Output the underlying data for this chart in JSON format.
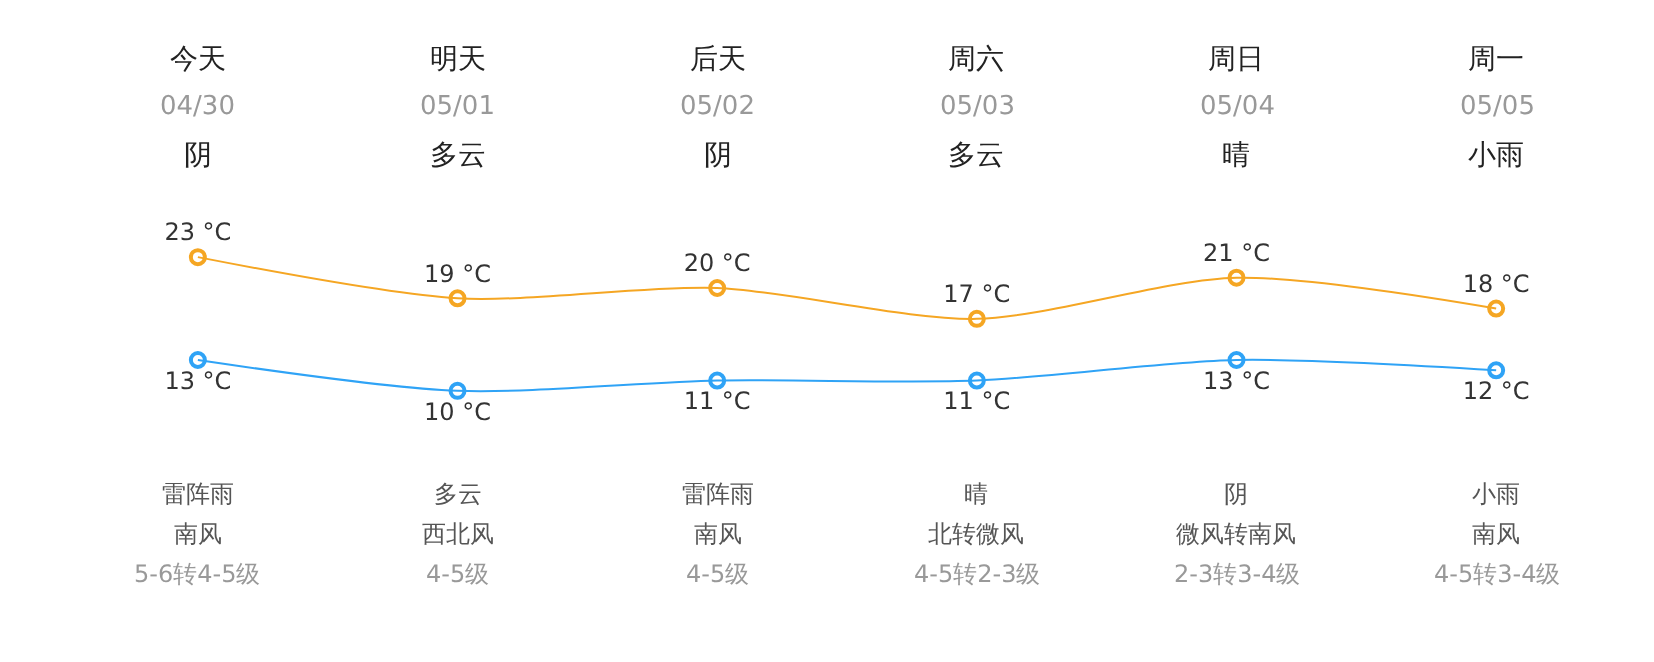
{
  "chart_data": {
    "type": "line",
    "categories": [
      "今天",
      "明天",
      "后天",
      "周六",
      "周日",
      "周一"
    ],
    "series": [
      {
        "color": "#f5a623",
        "values": [
          23,
          19,
          20,
          17,
          21,
          18
        ],
        "value_labels": [
          "23 °C",
          "19 °C",
          "20 °C",
          "17 °C",
          "21 °C",
          "18 °C"
        ]
      },
      {
        "color": "#2fa3f6",
        "values": [
          13,
          10,
          11,
          11,
          13,
          12
        ],
        "value_labels": [
          "13 °C",
          "10 °C",
          "11 °C",
          "11 °C",
          "13 °C",
          "12 °C"
        ]
      }
    ],
    "marker": "circle",
    "tick_labels": false,
    "legend": false,
    "annotations": [
      "04/30",
      "阴",
      "雷阵雨",
      "南风",
      "5-6转4-5级",
      "05/01",
      "多云",
      "多云",
      "西北风",
      "4-5级",
      "05/02",
      "阴",
      "雷阵雨",
      "南风",
      "4-5级",
      "05/03",
      "多云",
      "晴",
      "北转微风",
      "4-5转2-3级",
      "05/04",
      "晴",
      "阴",
      "微风转南风",
      "2-3转3-4级",
      "05/05",
      "小雨",
      "小雨",
      "南风",
      "4-5转3-4级"
    ]
  }
}
